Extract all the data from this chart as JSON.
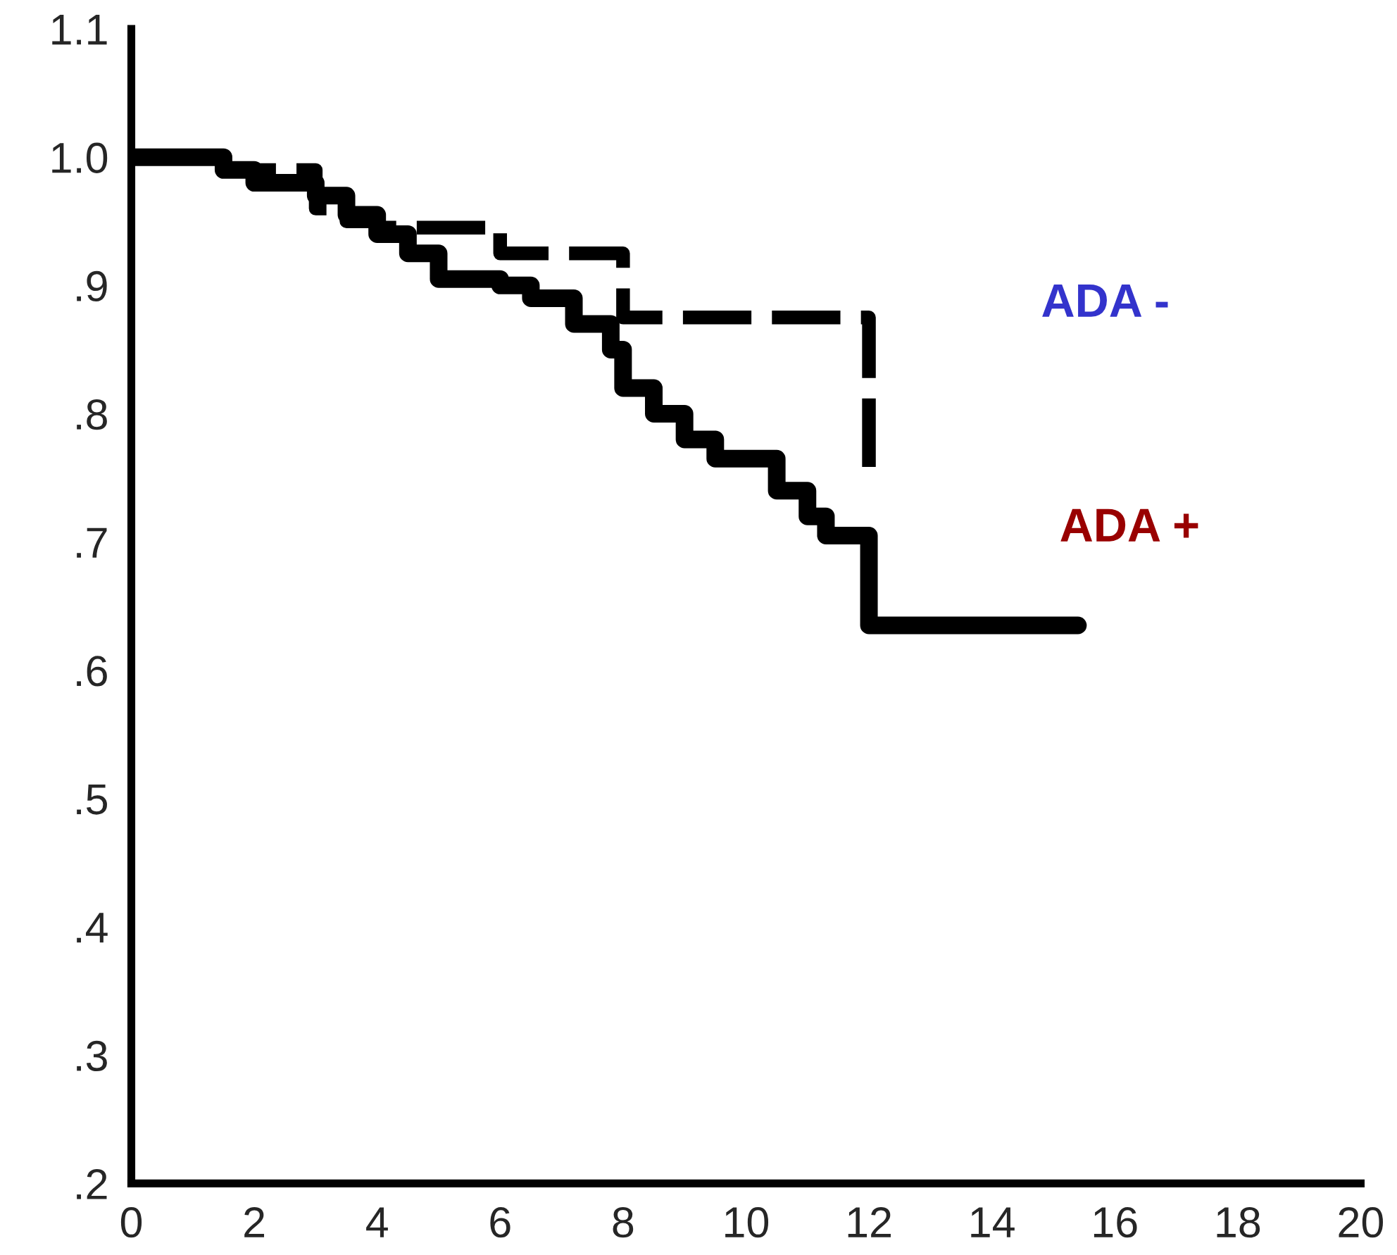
{
  "chart_data": {
    "type": "step",
    "xlim": [
      0,
      20
    ],
    "xticks": [
      0,
      2,
      4,
      6,
      8,
      10,
      12,
      14,
      16,
      18,
      20
    ],
    "ylim": [
      0.2,
      1.1
    ],
    "yticks": [
      {
        "value": 0.2,
        "label": ".2"
      },
      {
        "value": 0.3,
        "label": ".3"
      },
      {
        "value": 0.4,
        "label": ".4"
      },
      {
        "value": 0.5,
        "label": ".5"
      },
      {
        "value": 0.6,
        "label": ".6"
      },
      {
        "value": 0.7,
        "label": ".7"
      },
      {
        "value": 0.8,
        "label": ".8"
      },
      {
        "value": 0.9,
        "label": ".9"
      },
      {
        "value": 1.0,
        "label": "1.0"
      },
      {
        "value": 1.1,
        "label": "1.1"
      }
    ],
    "grid": false,
    "legend": false,
    "series": [
      {
        "name": "ADA -",
        "color": "#000000",
        "line_style": "dashed",
        "x": [
          0,
          1.5,
          3,
          3.5,
          4,
          6,
          8,
          12,
          12.1
        ],
        "values": [
          1.0,
          0.99,
          0.96,
          0.95,
          0.945,
          0.925,
          0.875,
          0.75,
          0.75
        ]
      },
      {
        "name": "ADA +",
        "color": "#000000",
        "line_style": "solid",
        "x": [
          0,
          1.5,
          2,
          3,
          3.5,
          4,
          4.5,
          5,
          6,
          6.5,
          7.2,
          7.8,
          8,
          8.5,
          9,
          9.5,
          10.5,
          11,
          11.3,
          12,
          15.4
        ],
        "values": [
          1.0,
          0.99,
          0.98,
          0.97,
          0.955,
          0.94,
          0.925,
          0.905,
          0.9,
          0.89,
          0.87,
          0.85,
          0.82,
          0.8,
          0.78,
          0.765,
          0.74,
          0.72,
          0.705,
          0.635,
          0.635
        ]
      }
    ]
  }
}
